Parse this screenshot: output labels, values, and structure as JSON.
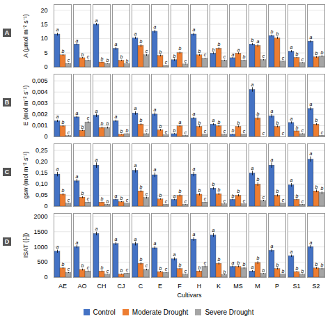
{
  "chart_data": [
    {
      "type": "bar",
      "title": "A",
      "ylabel": "A (μmol m⁻² s⁻¹)",
      "categories": [
        "AE",
        "AO",
        "CH",
        "CJ",
        "C",
        "E",
        "F",
        "H",
        "K",
        "MS",
        "M",
        "P",
        "S1",
        "S2"
      ],
      "series": [
        {
          "name": "Control",
          "color": "#4472C4",
          "values": [
            11.5,
            8.0,
            15.0,
            6.5,
            10.2,
            12.5,
            2.5,
            11.5,
            4.8,
            3.2,
            8.0,
            11.0,
            5.5,
            9.0
          ],
          "errors": [
            0.5,
            0.3,
            0.4,
            0.5,
            0.4,
            0.5,
            0.4,
            0.5,
            0.3,
            0.2,
            0.4,
            0.3,
            0.4,
            0.4
          ],
          "annotations": [
            "a",
            "a",
            "a",
            "a",
            "a",
            "a",
            "b",
            "a",
            "b",
            "a",
            "b",
            "b",
            "a",
            "a"
          ]
        },
        {
          "name": "Moderate Drought",
          "color": "#ED7D31",
          "values": [
            4.2,
            3.2,
            1.7,
            2.3,
            7.5,
            4.0,
            5.0,
            4.2,
            6.5,
            4.8,
            7.5,
            10.2,
            3.3,
            3.5
          ],
          "errors": [
            0.3,
            0.2,
            0.2,
            0.2,
            0.5,
            0.3,
            0.4,
            0.3,
            0.4,
            0.3,
            0.5,
            0.4,
            0.2,
            0.3
          ],
          "annotations": [
            "b",
            "b",
            "b",
            "b",
            "b",
            "b",
            "b",
            "b",
            "b",
            "a",
            "a",
            "b",
            "b",
            "b"
          ]
        },
        {
          "name": "Severe Drought",
          "color": "#A5A5A5",
          "values": [
            1.2,
            2.3,
            1.2,
            1.1,
            4.2,
            0.5,
            1.0,
            3.0,
            2.3,
            2.3,
            2.5,
            2.0,
            1.5,
            3.8
          ],
          "errors": [
            0.1,
            0.2,
            0.1,
            0.1,
            0.3,
            0.1,
            0.1,
            0.2,
            0.2,
            0.2,
            0.2,
            0.2,
            0.1,
            0.3
          ],
          "annotations": [
            "c",
            "c",
            "b",
            "b",
            "c",
            "c",
            "c",
            "c",
            "c",
            "b",
            "c",
            "c",
            "c",
            "b"
          ]
        }
      ],
      "ylim": [
        0,
        22
      ],
      "yticks": [
        0,
        5,
        10,
        15,
        20
      ],
      "grid": true,
      "tick_labels": "y"
    },
    {
      "type": "bar",
      "title": "B",
      "ylabel": "E (mol m⁻² s⁻¹)",
      "categories": [
        "AE",
        "AO",
        "CH",
        "CJ",
        "C",
        "E",
        "F",
        "H",
        "K",
        "MS",
        "M",
        "P",
        "S1",
        "S2"
      ],
      "series": [
        {
          "name": "Control",
          "color": "#4472C4",
          "values": [
            0.0014,
            0.00175,
            0.0019,
            0.0014,
            0.0021,
            0.002,
            0.00025,
            0.00165,
            0.0011,
            0.0002,
            0.0042,
            0.00185,
            0.00125,
            0.0025
          ],
          "errors": [
            0.0001,
            0.0001,
            0.00015,
            0.0001,
            0.00015,
            0.00015,
            5e-05,
            0.0001,
            0.0001,
            5e-05,
            0.0002,
            0.00015,
            0.0001,
            0.00015
          ],
          "annotations": [
            "a",
            "a",
            "a",
            "a",
            "a",
            "a",
            "b",
            "a",
            "a",
            "b",
            "a",
            "a",
            "a",
            "a"
          ]
        },
        {
          "name": "Moderate Drought",
          "color": "#ED7D31",
          "values": [
            0.00095,
            0.00055,
            0.0008,
            0.0002,
            0.0011,
            0.0006,
            0.00095,
            0.0009,
            0.00095,
            0.0009,
            0.00165,
            0.0009,
            0.0005,
            0.0011
          ],
          "errors": [
            8e-05,
            5e-05,
            8e-05,
            3e-05,
            0.0001,
            8e-05,
            8e-05,
            8e-05,
            8e-05,
            8e-05,
            0.00015,
            8e-05,
            5e-05,
            0.0001
          ],
          "annotations": [
            "b",
            "b",
            "b",
            "b",
            "b",
            "b",
            "a",
            "b",
            "b",
            "b",
            "b",
            "b",
            "b",
            "b"
          ]
        },
        {
          "name": "Severe Drought",
          "color": "#A5A5A5",
          "values": [
            8e-05,
            0.0013,
            0.0008,
            0.00025,
            0.00025,
            0.00015,
            0.0001,
            0.0002,
            0.0002,
            0.0002,
            0.0,
            0.0,
            0.00025,
            0.0001
          ],
          "errors": [
            2e-05,
            0.0001,
            8e-05,
            3e-05,
            3e-05,
            2e-05,
            1e-05,
            2e-05,
            2e-05,
            2e-05,
            1e-05,
            1e-05,
            3e-05,
            2e-05
          ],
          "annotations": [
            "c",
            "c",
            "b",
            "b",
            "c",
            "c",
            "c",
            "c",
            "c",
            "c",
            "c",
            "c",
            "c",
            "c"
          ]
        }
      ],
      "ylim": [
        0,
        0.0056
      ],
      "yticks": [
        0,
        {
          "value": 0.001,
          "label": "0,001"
        },
        {
          "value": 0.002,
          "label": "0,002"
        },
        {
          "value": 0.003,
          "label": "0,003"
        },
        {
          "value": 0.004,
          "label": "0,004"
        },
        {
          "value": 0.005,
          "label": "0,005"
        }
      ],
      "grid": true,
      "tick_labels": "y"
    },
    {
      "type": "bar",
      "title": "C",
      "ylabel": "gsw (mol m⁻² s⁻¹)",
      "categories": [
        "AE",
        "AO",
        "CH",
        "CJ",
        "C",
        "E",
        "F",
        "H",
        "K",
        "MS",
        "M",
        "P",
        "S1",
        "S2"
      ],
      "series": [
        {
          "name": "Control",
          "color": "#4472C4",
          "values": [
            0.143,
            0.113,
            0.183,
            0.03,
            0.16,
            0.14,
            0.03,
            0.143,
            0.08,
            0.03,
            0.148,
            0.183,
            0.095,
            0.21
          ],
          "errors": [
            0.01,
            0.008,
            0.012,
            0.003,
            0.01,
            0.01,
            0.003,
            0.01,
            0.006,
            0.003,
            0.01,
            0.012,
            0.008,
            0.012
          ],
          "annotations": [
            "a",
            "a",
            "a",
            "a",
            "a",
            "a",
            "a",
            "a",
            "b",
            "b",
            "a",
            "a",
            "a",
            "a"
          ]
        },
        {
          "name": "Moderate Drought",
          "color": "#ED7D31",
          "values": [
            0.053,
            0.04,
            0.018,
            0.02,
            0.068,
            0.032,
            0.048,
            0.053,
            0.055,
            0.048,
            0.098,
            0.048,
            0.03,
            0.068
          ],
          "errors": [
            0.005,
            0.004,
            0.002,
            0.002,
            0.006,
            0.003,
            0.005,
            0.005,
            0.005,
            0.005,
            0.008,
            0.005,
            0.003,
            0.006
          ],
          "annotations": [
            "b",
            "b",
            "b",
            "b",
            "b",
            "b",
            "b",
            "b",
            "b",
            "b",
            "b",
            "b",
            "b",
            "b"
          ]
        },
        {
          "name": "Severe Drought",
          "color": "#A5A5A5",
          "values": [
            0.013,
            0.018,
            0.008,
            0.013,
            0.038,
            0.008,
            0.008,
            0.018,
            0.01,
            0.01,
            0.025,
            0.013,
            0.008,
            0.06
          ],
          "errors": [
            0.001,
            0.002,
            0.001,
            0.001,
            0.004,
            0.001,
            0.001,
            0.002,
            0.001,
            0.001,
            0.003,
            0.001,
            0.001,
            0.006
          ],
          "annotations": [
            "c",
            "c",
            "b",
            "c",
            "c",
            "c",
            "c",
            "c",
            "c",
            "c",
            "c",
            "c",
            "c",
            "b"
          ]
        }
      ],
      "ylim": [
        0,
        0.28
      ],
      "yticks": [
        0,
        {
          "value": 0.05,
          "label": "0,05"
        },
        {
          "value": 0.1,
          "label": "0,10"
        },
        {
          "value": 0.15,
          "label": "0,15"
        },
        {
          "value": 0.2,
          "label": "0,20"
        },
        {
          "value": 0.25,
          "label": "0,25"
        }
      ],
      "grid": true,
      "tick_labels": "y"
    },
    {
      "type": "bar",
      "title": "D",
      "ylabel": "ISAT ([-])",
      "xlabel": "Cultivars",
      "categories": [
        "AE",
        "AO",
        "CH",
        "CJ",
        "C",
        "E",
        "F",
        "H",
        "K",
        "MS",
        "M",
        "P",
        "S1",
        "S2"
      ],
      "series": [
        {
          "name": "Control",
          "color": "#4472C4",
          "values": [
            850,
            1000,
            1430,
            1100,
            1100,
            960,
            600,
            1250,
            1380,
            350,
            200,
            880,
            700,
            1000
          ],
          "errors": [
            50,
            50,
            60,
            50,
            60,
            50,
            50,
            60,
            60,
            30,
            30,
            50,
            40,
            50
          ],
          "annotations": [
            "a",
            "a",
            "a",
            "a",
            "a",
            "a",
            "a",
            "a",
            "a",
            "a",
            "a",
            "a",
            "a",
            "a"
          ]
        },
        {
          "name": "Moderate Drought",
          "color": "#ED7D31",
          "values": [
            300,
            250,
            200,
            100,
            450,
            180,
            280,
            200,
            450,
            350,
            480,
            280,
            180,
            300
          ],
          "errors": [
            30,
            30,
            25,
            15,
            40,
            20,
            30,
            20,
            40,
            30,
            50,
            30,
            20,
            30
          ],
          "annotations": [
            "b",
            "b",
            "b",
            "b",
            "b",
            "b",
            "b",
            "b",
            "b",
            "b",
            "b",
            "b",
            "b",
            "b"
          ]
        },
        {
          "name": "Severe Drought",
          "color": "#A5A5A5",
          "values": [
            150,
            200,
            100,
            130,
            250,
            150,
            100,
            350,
            80,
            300,
            120,
            100,
            100,
            280
          ],
          "errors": [
            15,
            20,
            10,
            12,
            25,
            15,
            10,
            35,
            8,
            30,
            12,
            10,
            10,
            28
          ],
          "annotations": [
            "c",
            "c",
            "c",
            "c",
            "c",
            "c",
            "c",
            "c",
            "b",
            "b",
            "b",
            "b",
            "b",
            "b"
          ]
        }
      ],
      "ylim": [
        0,
        2100
      ],
      "yticks": [
        0,
        500,
        1000,
        1500,
        2000
      ],
      "grid": true,
      "legend": "bottom"
    }
  ]
}
